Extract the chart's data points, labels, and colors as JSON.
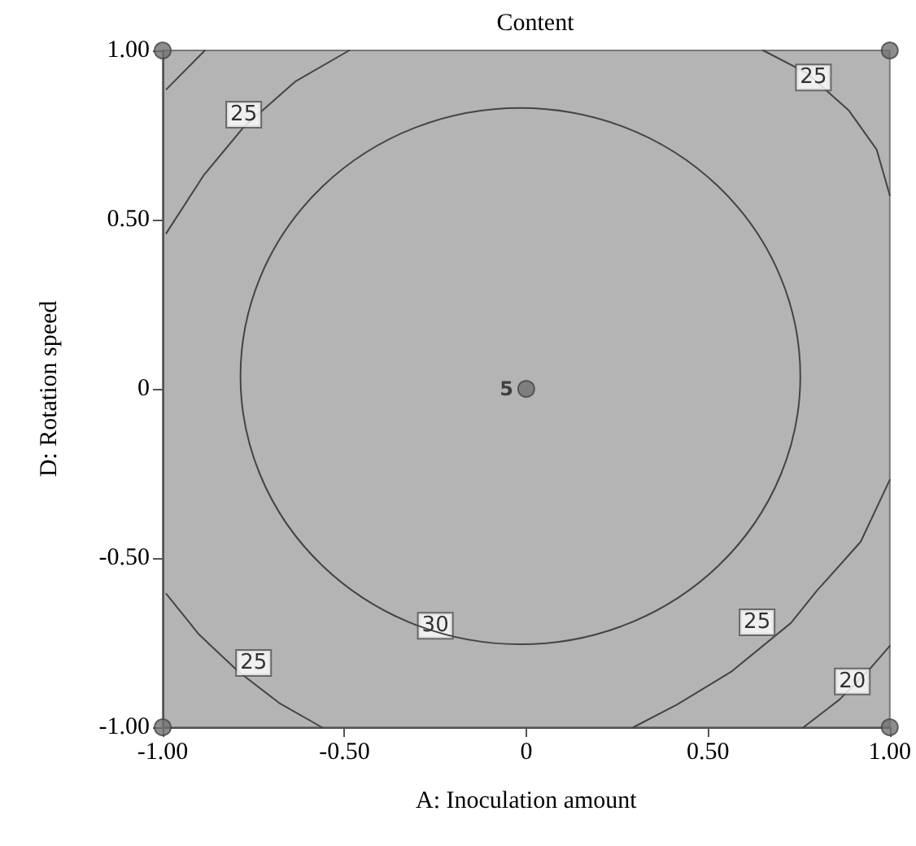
{
  "chart_data": {
    "type": "line",
    "title": "Content",
    "xlabel": "A: Inoculation amount",
    "ylabel": "D: Rotation speed",
    "xlim": [
      -1,
      1
    ],
    "ylim": [
      -1,
      1
    ],
    "xticks": [
      {
        "value": -1,
        "label": "-1.00"
      },
      {
        "value": -0.5,
        "label": "-0.50"
      },
      0,
      {
        "value": 0.5,
        "label": "0.50"
      },
      {
        "value": 1,
        "label": "1.00"
      }
    ],
    "yticks": [
      {
        "value": -1,
        "label": "-1.00"
      },
      {
        "value": -0.5,
        "label": "-0.50"
      },
      0,
      {
        "value": 0.5,
        "label": "0.50"
      },
      {
        "value": 1,
        "label": "1.00"
      }
    ],
    "grid": false,
    "marker": "none",
    "line_style": "solid",
    "series": [
      {
        "color": "#444444",
        "x": [
          -0.99,
          -0.884
        ],
        "values": [
          0.885,
          1.0
        ]
      },
      {
        "color": "#444444",
        "x": [
          -0.99,
          -0.888,
          -0.777,
          -0.634,
          -0.487
        ],
        "values": [
          0.46,
          0.63,
          0.774,
          0.909,
          1.0
        ]
      },
      {
        "color": "#444444",
        "x": [
          0.652,
          0.772,
          0.888,
          0.964,
          1.0
        ],
        "values": [
          1.0,
          0.933,
          0.822,
          0.707,
          0.572
        ]
      },
      {
        "color": "#444444",
        "x": [
          1.0,
          0.92,
          0.8,
          0.728,
          0.5625,
          0.415,
          0.295
        ],
        "values": [
          -0.269,
          -0.452,
          -0.596,
          -0.692,
          -0.837,
          -0.933,
          -1.0
        ]
      },
      {
        "color": "#444444",
        "x": [
          1.0,
          0.95,
          0.862,
          0.763
        ],
        "values": [
          -0.76,
          -0.822,
          -0.918,
          -1.0
        ]
      },
      {
        "color": "#444444",
        "x": [
          -0.99,
          -0.9,
          -0.79,
          -0.68,
          -0.5625
        ],
        "values": [
          -0.606,
          -0.726,
          -0.837,
          -0.928,
          -1.0
        ]
      },
      {
        "type": "scatter",
        "color": "#707070",
        "marker": "circle",
        "x": [
          -1,
          1,
          -1,
          1,
          0
        ],
        "values": [
          1,
          1,
          -1,
          -1,
          0
        ]
      }
    ],
    "annotations": [
      {
        "text": "25",
        "x": -0.777,
        "y": 0.81
      },
      {
        "text": "25",
        "x": 0.79,
        "y": 0.92
      },
      {
        "text": "30",
        "x": -0.25,
        "y": -0.7
      },
      {
        "text": "25",
        "x": -0.75,
        "y": -0.81
      },
      {
        "text": "25",
        "x": 0.635,
        "y": -0.69
      },
      {
        "text": "20",
        "x": 0.897,
        "y": -0.865
      },
      {
        "text": "5",
        "x": 0,
        "y": 0
      }
    ]
  }
}
